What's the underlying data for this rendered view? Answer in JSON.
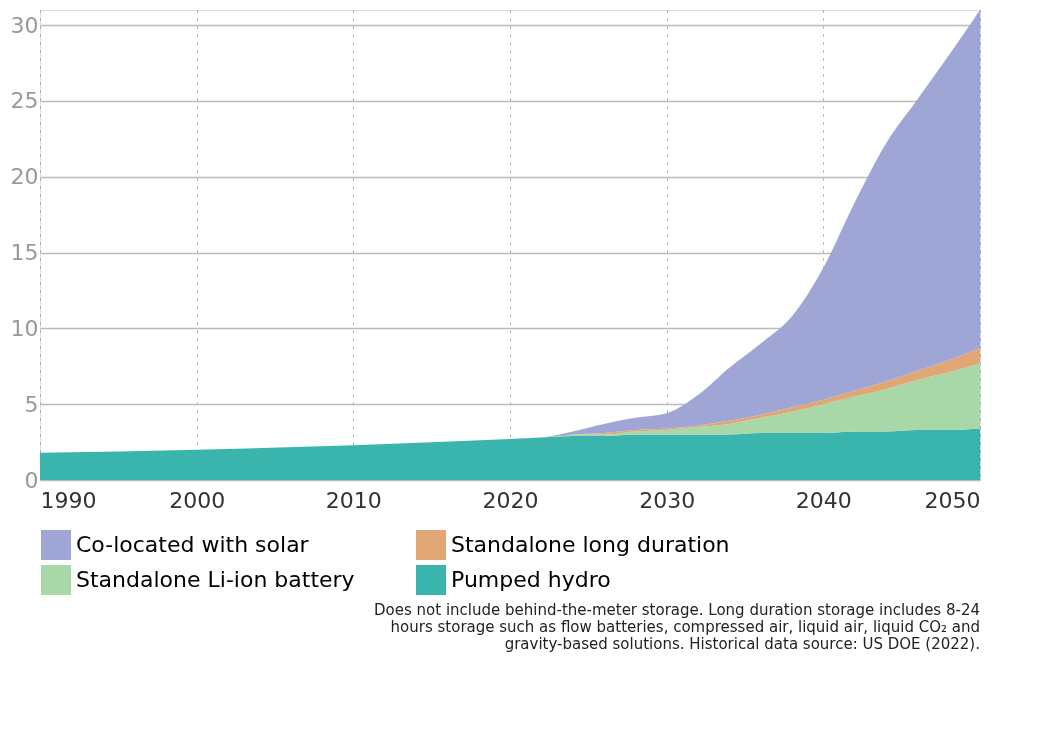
{
  "chart_data": {
    "type": "area",
    "stacked": true,
    "x": [
      1990,
      2000,
      2010,
      2020,
      2022,
      2024,
      2026,
      2028,
      2030,
      2032,
      2034,
      2036,
      2038,
      2040,
      2042,
      2044,
      2046,
      2048,
      2050
    ],
    "series": [
      {
        "name": "Pumped hydro",
        "color": "#3ab5ae",
        "values": [
          1.8,
          2.0,
          2.3,
          2.7,
          2.8,
          2.9,
          2.9,
          3.0,
          3.0,
          3.0,
          3.0,
          3.1,
          3.1,
          3.1,
          3.2,
          3.2,
          3.3,
          3.3,
          3.4
        ]
      },
      {
        "name": "Standalone Li-ion battery",
        "color": "#a8d8a8",
        "values": [
          0,
          0,
          0,
          0,
          0,
          0.1,
          0.1,
          0.2,
          0.3,
          0.5,
          0.7,
          1.0,
          1.4,
          1.9,
          2.3,
          2.8,
          3.3,
          3.8,
          4.3
        ]
      },
      {
        "name": "Standalone long duration",
        "color": "#e0a674",
        "values": [
          0,
          0,
          0,
          0,
          0,
          0,
          0.1,
          0.1,
          0.1,
          0.1,
          0.2,
          0.2,
          0.3,
          0.3,
          0.4,
          0.5,
          0.6,
          0.8,
          1.0
        ]
      },
      {
        "name": "Co-located with solar",
        "color": "#9fa6d6",
        "values": [
          0,
          0,
          0,
          0,
          0,
          0.2,
          0.6,
          0.8,
          1.0,
          2.0,
          3.5,
          4.7,
          6.0,
          8.7,
          12.4,
          15.7,
          17.9,
          20.1,
          22.3
        ]
      }
    ],
    "xlim": [
      1990,
      2050
    ],
    "xticks": [
      1990,
      2000,
      2010,
      2020,
      2030,
      2040,
      2050
    ],
    "ylim": [
      0,
      31
    ],
    "yticks": [
      0,
      5,
      10,
      15,
      20,
      25,
      30
    ],
    "grid": true,
    "legend": "bottom",
    "annotations": [
      "Does not include behind-the-meter storage. Long duration storage includes 8-24 hours storage such as flow batteries, compressed air, liquid air, liquid CO₂ and gravity-based solutions. Historical data source: US DOE (2022)."
    ]
  }
}
